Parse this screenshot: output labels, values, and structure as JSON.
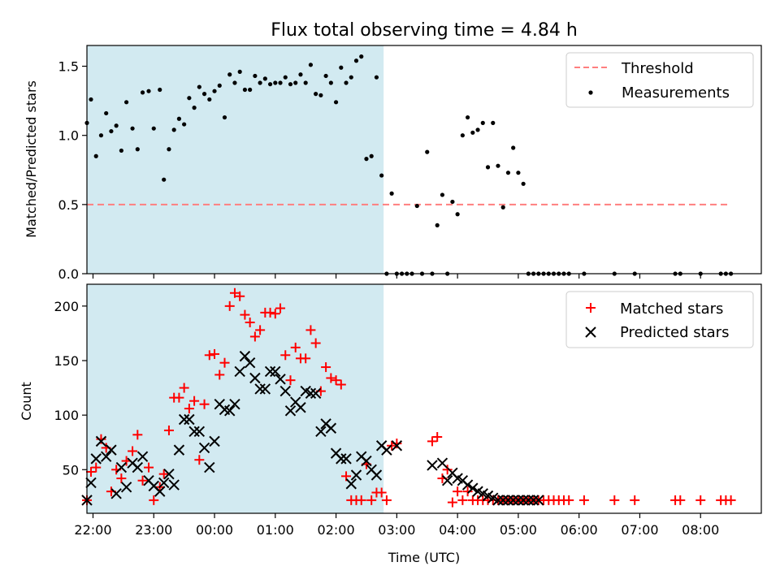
{
  "colors": {
    "shade": "#add8e6",
    "threshold": "#ff7f7f",
    "matched": "#ff0000",
    "predicted": "#000000",
    "measurement": "#000000"
  },
  "chart_data": [
    {
      "type": "scatter",
      "title": "Flux total observing time = 4.84 h",
      "xlabel": "",
      "ylabel": "Matched/Predicted stars",
      "ylim": [
        0,
        1.65
      ],
      "yticks": [
        "0.0",
        "0.5",
        "1.0",
        "1.5"
      ],
      "xlim": [
        "21:54",
        "09:00"
      ],
      "shaded_interval": [
        "21:54",
        "02:47"
      ],
      "grid": false,
      "legend_placement": "top-right",
      "legend": [
        "Threshold",
        "Measurements"
      ],
      "threshold": {
        "name": "Threshold",
        "value": 0.5,
        "x_range": [
          "21:54",
          "08:30"
        ]
      },
      "measurements": {
        "name": "Measurements",
        "x": [
          "21:54",
          "21:58",
          "22:03",
          "22:08",
          "22:13",
          "22:18",
          "22:23",
          "22:28",
          "22:33",
          "22:39",
          "22:44",
          "22:49",
          "22:55",
          "23:00",
          "23:06",
          "23:10",
          "23:15",
          "23:20",
          "23:25",
          "23:30",
          "23:35",
          "23:40",
          "23:45",
          "23:50",
          "23:55",
          "24:00",
          "00:05",
          "00:10",
          "00:15",
          "00:20",
          "00:25",
          "00:30",
          "00:35",
          "00:40",
          "00:45",
          "00:50",
          "00:55",
          "01:00",
          "01:05",
          "01:10",
          "01:15",
          "01:20",
          "01:25",
          "01:30",
          "01:35",
          "01:40",
          "01:45",
          "01:50",
          "01:55",
          "02:00",
          "02:05",
          "02:10",
          "02:15",
          "02:20",
          "02:25",
          "02:30",
          "02:35",
          "02:40",
          "02:45",
          "02:50",
          "02:55",
          "03:00",
          "03:05",
          "03:10",
          "03:15",
          "03:20",
          "03:25",
          "03:30",
          "03:35",
          "03:40",
          "03:45",
          "03:50",
          "03:55",
          "04:00",
          "04:05",
          "04:10",
          "04:15",
          "04:20",
          "04:25",
          "04:30",
          "04:35",
          "04:40",
          "04:45",
          "04:50",
          "04:55",
          "05:00",
          "05:05",
          "05:10",
          "05:15",
          "05:20",
          "05:25",
          "05:30",
          "05:35",
          "05:40",
          "05:45",
          "05:50",
          "06:05",
          "06:35",
          "06:55",
          "07:35",
          "07:40",
          "08:00",
          "08:20",
          "08:25",
          "08:30"
        ],
        "y": [
          1.09,
          1.26,
          0.85,
          1.0,
          1.16,
          1.03,
          1.07,
          0.89,
          1.24,
          1.05,
          0.9,
          1.31,
          1.32,
          1.05,
          1.33,
          0.68,
          0.9,
          1.04,
          1.12,
          1.08,
          1.27,
          1.2,
          1.35,
          1.3,
          1.26,
          1.32,
          1.36,
          1.13,
          1.44,
          1.38,
          1.46,
          1.33,
          1.33,
          1.43,
          1.38,
          1.41,
          1.37,
          1.38,
          1.38,
          1.42,
          1.37,
          1.38,
          1.44,
          1.38,
          1.51,
          1.3,
          1.29,
          1.43,
          1.38,
          1.24,
          1.49,
          1.38,
          1.42,
          1.54,
          1.57,
          0.83,
          0.85,
          1.42,
          0.71,
          0.0,
          0.58,
          0.0,
          0.0,
          0.0,
          0.0,
          0.49,
          0.0,
          0.88,
          0.0,
          0.35,
          0.57,
          0.0,
          0.52,
          0.43,
          1.0,
          1.13,
          1.02,
          1.04,
          1.09,
          0.77,
          1.09,
          0.78,
          0.48,
          0.73,
          0.91,
          0.73,
          0.65,
          0.0,
          0.0,
          0.0,
          0.0,
          0.0,
          0.0,
          0.0,
          0.0,
          0.0,
          0.0,
          0.0,
          0.0,
          0.0,
          0.0,
          0.0,
          0.0,
          0.0,
          0.0
        ]
      }
    },
    {
      "type": "scatter",
      "title": "",
      "xlabel": "Time (UTC)",
      "ylabel": "Count",
      "ylim": [
        10,
        220
      ],
      "yticks": [
        "50",
        "100",
        "150",
        "200"
      ],
      "xlim": [
        "21:54",
        "09:00"
      ],
      "xticks": [
        "22:00",
        "23:00",
        "00:00",
        "01:00",
        "02:00",
        "03:00",
        "04:00",
        "05:00",
        "06:00",
        "07:00",
        "08:00"
      ],
      "shaded_interval": [
        "21:54",
        "02:47"
      ],
      "grid": false,
      "legend_placement": "top-right",
      "legend": [
        "Matched stars",
        "Predicted stars"
      ],
      "series": [
        {
          "name": "Matched stars",
          "marker": "+",
          "x": [
            "21:54",
            "21:58",
            "22:03",
            "22:08",
            "22:13",
            "22:18",
            "22:23",
            "22:28",
            "22:33",
            "22:39",
            "22:44",
            "22:49",
            "22:55",
            "23:00",
            "23:06",
            "23:10",
            "23:15",
            "23:20",
            "23:25",
            "23:30",
            "23:35",
            "23:40",
            "23:45",
            "23:50",
            "23:55",
            "24:00",
            "00:05",
            "00:10",
            "00:15",
            "00:20",
            "00:25",
            "00:30",
            "00:35",
            "00:40",
            "00:45",
            "00:50",
            "00:55",
            "01:00",
            "01:05",
            "01:10",
            "01:15",
            "01:20",
            "01:25",
            "01:30",
            "01:35",
            "01:40",
            "01:45",
            "01:50",
            "01:55",
            "02:00",
            "02:05",
            "02:10",
            "02:15",
            "02:20",
            "02:25",
            "02:30",
            "02:35",
            "02:40",
            "02:45",
            "02:50",
            "02:55",
            "03:00",
            "03:35",
            "03:40",
            "03:45",
            "03:50",
            "03:55",
            "04:00",
            "04:05",
            "04:10",
            "04:15",
            "04:20",
            "04:25",
            "04:30",
            "04:35",
            "04:40",
            "04:45",
            "04:50",
            "04:55",
            "05:00",
            "05:05",
            "05:10",
            "05:15",
            "05:20",
            "05:25",
            "05:30",
            "05:35",
            "05:40",
            "05:45",
            "05:50",
            "06:05",
            "06:35",
            "06:55",
            "07:35",
            "07:40",
            "08:00",
            "08:20",
            "08:25",
            "08:30"
          ],
          "y": [
            22,
            48,
            52,
            78,
            70,
            30,
            50,
            42,
            58,
            67,
            82,
            40,
            52,
            22,
            34,
            46,
            86,
            116,
            116,
            125,
            106,
            113,
            59,
            110,
            155,
            156,
            137,
            148,
            200,
            212,
            209,
            192,
            185,
            172,
            178,
            194,
            194,
            193,
            198,
            155,
            132,
            162,
            152,
            152,
            178,
            166,
            122,
            144,
            134,
            132,
            128,
            44,
            22,
            22,
            22,
            55,
            22,
            29,
            29,
            22,
            72,
            74,
            76,
            80,
            42,
            50,
            20,
            30,
            22,
            30,
            22,
            22,
            22,
            22,
            22,
            22,
            22,
            22,
            22,
            22,
            22,
            22,
            22,
            22,
            22,
            22,
            22,
            22,
            22,
            22,
            22,
            22,
            22,
            22,
            22,
            22,
            22,
            22,
            22
          ]
        },
        {
          "name": "Predicted stars",
          "marker": "x",
          "x": [
            "21:54",
            "21:58",
            "22:03",
            "22:08",
            "22:13",
            "22:18",
            "22:23",
            "22:28",
            "22:33",
            "22:39",
            "22:44",
            "22:49",
            "22:55",
            "23:00",
            "23:06",
            "23:10",
            "23:15",
            "23:20",
            "23:25",
            "23:30",
            "23:35",
            "23:40",
            "23:45",
            "23:50",
            "23:55",
            "24:00",
            "00:05",
            "00:10",
            "00:15",
            "00:20",
            "00:25",
            "00:30",
            "00:35",
            "00:40",
            "00:45",
            "00:50",
            "00:55",
            "01:00",
            "01:05",
            "01:10",
            "01:15",
            "01:20",
            "01:25",
            "01:30",
            "01:35",
            "01:40",
            "01:45",
            "01:50",
            "01:55",
            "02:00",
            "02:05",
            "02:10",
            "02:15",
            "02:20",
            "02:25",
            "02:30",
            "02:35",
            "02:40",
            "02:45",
            "02:50",
            "03:00",
            "03:35",
            "03:45",
            "03:50",
            "03:55",
            "04:00",
            "04:05",
            "04:10",
            "04:15",
            "04:20",
            "04:25",
            "04:30",
            "04:35",
            "04:40",
            "04:45",
            "04:50",
            "04:55",
            "05:00",
            "05:05",
            "05:10",
            "05:15",
            "05:20"
          ],
          "y": [
            22,
            38,
            60,
            76,
            62,
            68,
            28,
            52,
            34,
            56,
            52,
            62,
            40,
            35,
            30,
            38,
            46,
            36,
            68,
            96,
            96,
            85,
            85,
            70,
            52,
            76,
            110,
            105,
            104,
            110,
            140,
            154,
            148,
            134,
            124,
            124,
            140,
            140,
            133,
            122,
            104,
            112,
            107,
            122,
            120,
            120,
            85,
            92,
            88,
            65,
            60,
            60,
            37,
            45,
            62,
            58,
            50,
            45,
            72,
            68,
            72,
            54,
            56,
            40,
            47,
            42,
            40,
            36,
            33,
            30,
            28,
            26,
            24,
            22,
            22,
            22,
            22,
            22,
            22,
            22,
            22,
            22
          ]
        }
      ]
    }
  ]
}
